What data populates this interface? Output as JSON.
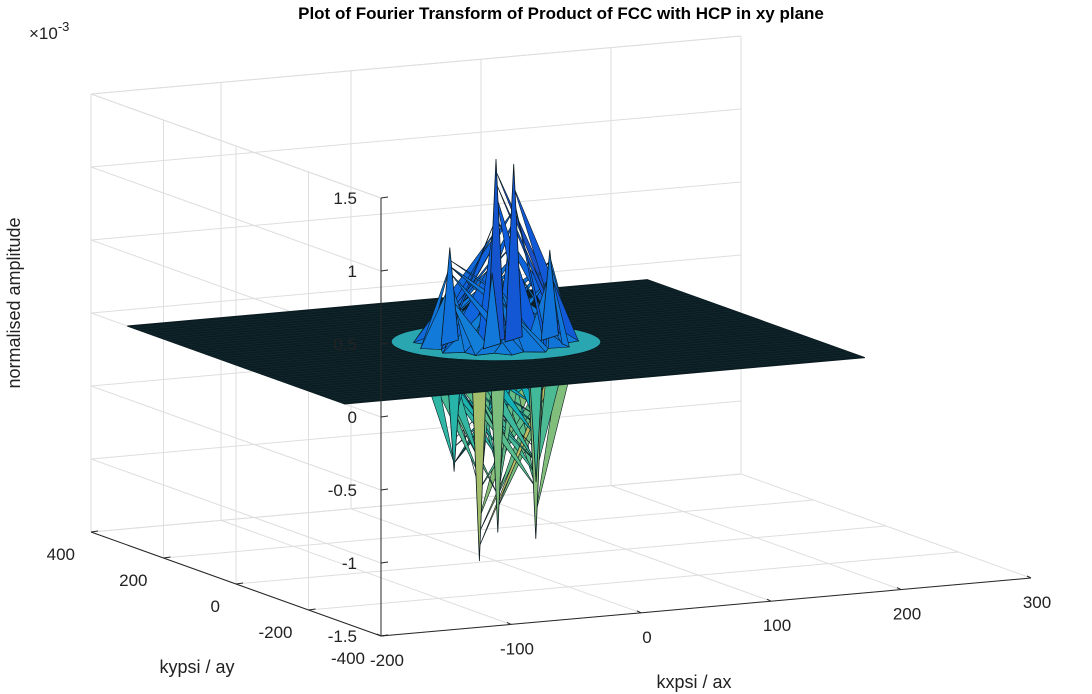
{
  "chart_data": {
    "type": "surface",
    "title": "Plot of Fourier Transform of Product of FCC with HCP in xy plane",
    "xlabel": "kxpsi / ax",
    "ylabel": "kypsi / ay",
    "zlabel": "normalised amplitude",
    "z_exponent_label": "×10",
    "z_exponent_power": "-3",
    "xlim": [
      -200,
      300
    ],
    "ylim": [
      -400,
      400
    ],
    "zlim": [
      -1.5,
      1.5
    ],
    "x_ticks": [
      -200,
      -100,
      0,
      100,
      200,
      300
    ],
    "y_ticks": [
      -400,
      -200,
      0,
      200,
      400
    ],
    "z_ticks": [
      -1.5,
      -1,
      -0.5,
      0,
      0.5,
      1,
      1.5
    ],
    "x_tick_labels": [
      "-200",
      "-100",
      "0",
      "100",
      "200",
      "300"
    ],
    "y_tick_labels": [
      "-400",
      "-200",
      "0",
      "200",
      "400"
    ],
    "z_tick_labels": [
      "-1.5",
      "-1",
      "-0.5",
      "0",
      "0.5",
      "1",
      "1.5"
    ],
    "grid": true,
    "colormap": "parula",
    "surface_extent": {
      "x": [
        -200,
        200
      ],
      "y": [
        -300,
        300
      ]
    },
    "peaks": [
      {
        "x": 0,
        "y": 0,
        "z": 1.25
      },
      {
        "x": 15,
        "y": 5,
        "z": 1.2
      },
      {
        "x": -30,
        "y": 20,
        "z": 0.65
      },
      {
        "x": 40,
        "y": -5,
        "z": 0.6
      },
      {
        "x": -10,
        "y": -25,
        "z": 0.5
      },
      {
        "x": -10,
        "y": 10,
        "z": -1.5
      },
      {
        "x": 25,
        "y": -20,
        "z": -1.35
      },
      {
        "x": 0,
        "y": -5,
        "z": -1.3
      },
      {
        "x": 35,
        "y": 15,
        "z": -1.0
      },
      {
        "x": -35,
        "y": -10,
        "z": -0.85
      }
    ]
  }
}
